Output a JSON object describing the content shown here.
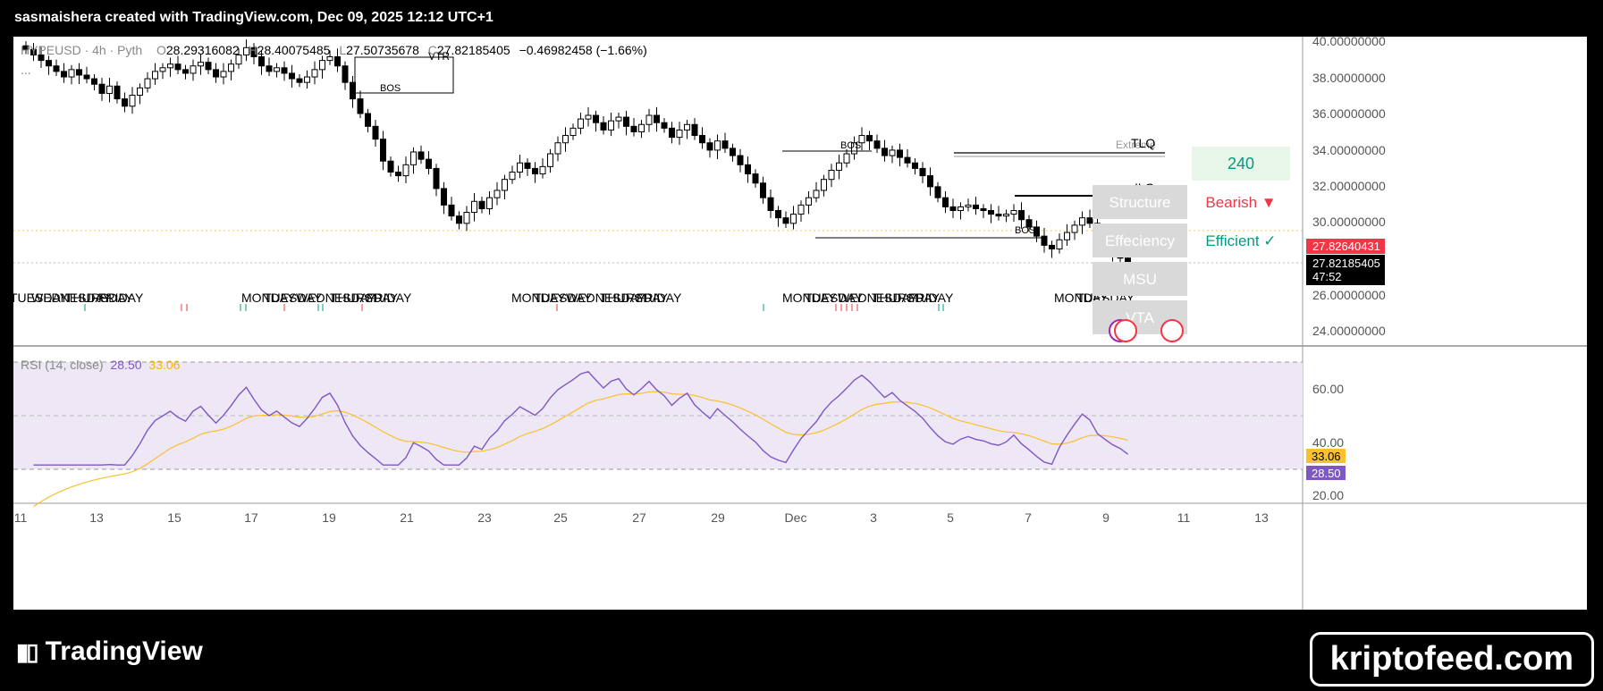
{
  "header": {
    "attribution": "sasmaishera created with TradingView.com, Dec 09, 2025 12:12 UTC+1"
  },
  "legend": {
    "symbol": "HYPEUSD · 4h · Pyth",
    "o_label": "O",
    "o_value": "28.29316082",
    "h_label": "H",
    "h_value": "28.40075485",
    "l_label": "L",
    "l_value": "27.50735678",
    "c_label": "C",
    "c_value": "27.82185405",
    "change": "−0.46982458 (−1.66%)",
    "more": "..."
  },
  "price_axis": {
    "ticks": [
      "40.00000000",
      "38.00000000",
      "36.00000000",
      "34.00000000",
      "32.00000000",
      "30.00000000",
      "26.00000000",
      "24.00000000"
    ],
    "prev_close": "27.82640431",
    "last_price": "27.82185405",
    "countdown": "47:52"
  },
  "rsi": {
    "label": "RSI (14, close)",
    "value": "28.50",
    "ma_value": "33.06",
    "ticks": [
      "60.00",
      "40.00",
      "20.00"
    ],
    "last_label": "28.50",
    "ma_label": "33.06"
  },
  "time_axis": {
    "ticks": [
      "11",
      "13",
      "15",
      "17",
      "19",
      "21",
      "23",
      "25",
      "27",
      "29",
      "Dec",
      "3",
      "5",
      "7",
      "9",
      "11",
      "13"
    ]
  },
  "day_labels": [
    "TUESDAY",
    "WEDNESDAY",
    "THURSDAY",
    "FRIDAY",
    "MONDAY",
    "TUESDAY",
    "WEDNESDAY",
    "THURSDAY",
    "FRIDAY",
    "MONDAY",
    "TUESDAY",
    "WEDNESDAY",
    "THURSDAY",
    "FRIDAY",
    "MONDAY",
    "TUESDAY",
    "WEDNESDAY",
    "THURSDAY",
    "FRIDAY",
    "MONDAY",
    "TUESDAY"
  ],
  "annotations": {
    "bos": "BOS",
    "vtr": "VTR",
    "tlq": "TLQ",
    "ilq": "ILQ",
    "extreme": "Extreme"
  },
  "panel": {
    "timeframe": "240",
    "structure_label": "Structure",
    "structure_value": "Bearish ▼",
    "effeciency_label": "Effeciency",
    "effeciency_value": "Efficient ✓",
    "msu_label": "MSU",
    "vta_label": "VTA"
  },
  "footer": {
    "brand": "TradingView",
    "watermark": "kriptofeed.com"
  },
  "colors": {
    "bull": "#ffffff",
    "bear": "#000000",
    "rsi_line": "#7e57c2",
    "rsi_ma": "#fbc02d",
    "bearish": "#f23645",
    "efficient": "#089981",
    "panel_green_bg": "#e8f5e9",
    "price_tag": "#f23645"
  },
  "chart_data": {
    "type": "candlestick",
    "timeframe": "4h",
    "ylim": [
      23.5,
      40.4
    ],
    "close_series": [
      39.7,
      39.4,
      39.1,
      38.8,
      38.5,
      38.2,
      38.6,
      38.3,
      38.1,
      37.8,
      37.3,
      37.7,
      37.0,
      36.6,
      37.2,
      37.6,
      38.1,
      38.5,
      38.7,
      38.9,
      38.6,
      38.4,
      38.8,
      39.0,
      38.6,
      38.2,
      38.5,
      38.9,
      39.4,
      39.8,
      39.3,
      38.8,
      38.5,
      38.7,
      38.4,
      38.1,
      37.9,
      38.2,
      38.6,
      39.1,
      39.3,
      38.8,
      37.9,
      37.0,
      36.2,
      35.5,
      34.8,
      33.6,
      33.0,
      32.8,
      33.4,
      34.1,
      33.7,
      33.2,
      32.1,
      31.2,
      30.6,
      30.2,
      30.8,
      31.4,
      31.0,
      31.6,
      32.0,
      32.6,
      33.0,
      33.5,
      33.2,
      32.9,
      33.3,
      34.0,
      34.6,
      35.0,
      35.4,
      35.9,
      36.1,
      35.7,
      35.3,
      35.8,
      36.0,
      35.5,
      35.2,
      35.6,
      36.1,
      35.7,
      35.4,
      34.9,
      35.3,
      35.6,
      35.0,
      34.6,
      34.2,
      34.7,
      34.3,
      33.9,
      33.4,
      32.9,
      32.4,
      31.6,
      30.9,
      30.5,
      30.2,
      30.7,
      31.2,
      31.6,
      32.0,
      32.6,
      33.1,
      33.5,
      34.0,
      34.6,
      35.0,
      34.7,
      34.3,
      33.9,
      34.2,
      33.8,
      33.5,
      33.2,
      32.8,
      32.2,
      31.6,
      31.1,
      30.9,
      31.1,
      31.2,
      31.0,
      30.9,
      30.7,
      30.6,
      30.7,
      30.9,
      30.4,
      30.0,
      29.5,
      29.0,
      28.8,
      29.3,
      29.7,
      30.1,
      30.5,
      30.2,
      29.4,
      29.0,
      28.6,
      28.3,
      27.82
    ]
  }
}
